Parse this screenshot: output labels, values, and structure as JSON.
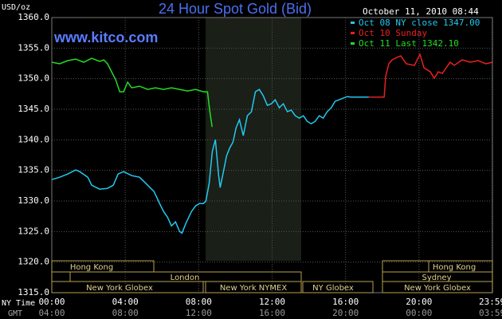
{
  "chart_data": {
    "type": "line",
    "title": "24 Hour Spot Gold (Bid)",
    "y_label": "USD/oz",
    "watermark": "www.kitco.com",
    "timestamp": "October 11, 2010 08:44",
    "x_label": "NY Time",
    "x2_label": "GMT",
    "ylim": [
      1315,
      1360
    ],
    "yticks": [
      {
        "value": 1315,
        "label": "1315.0"
      },
      {
        "value": 1320,
        "label": "1320.0"
      },
      {
        "value": 1325,
        "label": "1325.0"
      },
      {
        "value": 1330,
        "label": "1330.0"
      },
      {
        "value": 1335,
        "label": "1335.0"
      },
      {
        "value": 1340,
        "label": "1340.0"
      },
      {
        "value": 1345,
        "label": "1345.0"
      },
      {
        "value": 1350,
        "label": "1350.0"
      },
      {
        "value": 1355,
        "label": "1355.0"
      },
      {
        "value": 1360,
        "label": "1360.0"
      }
    ],
    "xlim": [
      0,
      24
    ],
    "xticks": [
      {
        "value": 0,
        "label": "00:00"
      },
      {
        "value": 4,
        "label": "04:00"
      },
      {
        "value": 8,
        "label": "08:00"
      },
      {
        "value": 12,
        "label": "12:00"
      },
      {
        "value": 16,
        "label": "16:00"
      },
      {
        "value": 20,
        "label": "20:00"
      },
      {
        "value": 23.98,
        "label": "23:59"
      }
    ],
    "x2ticks": [
      {
        "value": 0,
        "label": "04:00"
      },
      {
        "value": 4,
        "label": "08:00"
      },
      {
        "value": 8,
        "label": "12:00"
      },
      {
        "value": 12,
        "label": "16:00"
      },
      {
        "value": 16,
        "label": "20:00"
      },
      {
        "value": 20,
        "label": "00:00"
      },
      {
        "value": 23.98,
        "label": "03:59"
      }
    ],
    "grid": true,
    "sessions": [
      "Hong Kong",
      "Hong Kong",
      "London",
      "Sydney",
      "New York Globex",
      "New York NYMEX",
      "NY Globex",
      "New York Globex"
    ],
    "series": [
      {
        "name": "Oct 08 NY close 1347.00",
        "color": "#22c8f0",
        "x": [
          0,
          0.43,
          0.87,
          1.3,
          1.52,
          1.96,
          2.17,
          2.61,
          3.04,
          3.35,
          3.61,
          3.91,
          4.35,
          4.78,
          5.22,
          5.57,
          5.87,
          6.09,
          6.3,
          6.52,
          6.74,
          6.96,
          7.09,
          7.3,
          7.61,
          7.83,
          8.04,
          8.26,
          8.39,
          8.57,
          8.74,
          8.91,
          9.09,
          9.17,
          9.35,
          9.52,
          9.7,
          9.87,
          10.04,
          10.22,
          10.43,
          10.65,
          10.87,
          11.09,
          11.3,
          11.52,
          11.74,
          11.96,
          12.17,
          12.39,
          12.61,
          12.83,
          13.04,
          13.26,
          13.48,
          13.7,
          13.91,
          14.13,
          14.35,
          14.57,
          14.78,
          15.0,
          15.22,
          15.43,
          15.65,
          15.87,
          16.09,
          16.3,
          17.27
        ],
        "values": [
          1333.5,
          1333.89,
          1334.41,
          1335.07,
          1334.8,
          1333.89,
          1332.58,
          1331.93,
          1332.06,
          1332.58,
          1334.41,
          1334.8,
          1334.15,
          1333.89,
          1332.58,
          1331.54,
          1329.58,
          1328.28,
          1327.36,
          1325.93,
          1326.58,
          1325.01,
          1324.75,
          1326.32,
          1328.28,
          1329.19,
          1329.58,
          1329.58,
          1329.97,
          1332.85,
          1338.07,
          1340.03,
          1334.15,
          1332.19,
          1334.8,
          1337.41,
          1338.72,
          1339.63,
          1341.98,
          1343.29,
          1340.68,
          1343.94,
          1344.6,
          1347.86,
          1348.25,
          1347.21,
          1345.64,
          1345.9,
          1346.55,
          1345.25,
          1345.9,
          1344.6,
          1344.86,
          1343.94,
          1343.55,
          1343.94,
          1343.03,
          1342.64,
          1343.03,
          1343.94,
          1343.55,
          1344.6,
          1345.25,
          1346.29,
          1346.55,
          1346.81,
          1347.08,
          1347.0,
          1347.0
        ]
      },
      {
        "name": "Oct 10 Sunday",
        "color": "#e82020",
        "x": [
          17.27,
          18.1,
          18.19,
          18.36,
          18.53,
          18.79,
          19.01,
          19.31,
          19.75,
          20.05,
          20.27,
          20.62,
          20.83,
          21.05,
          21.27,
          21.48,
          21.7,
          21.92,
          22.35,
          22.79,
          23.22,
          23.65,
          24
        ],
        "values": [
          1347.0,
          1347.0,
          1350.47,
          1352.43,
          1353.08,
          1353.47,
          1353.73,
          1352.43,
          1352.17,
          1353.99,
          1351.78,
          1351.12,
          1350.08,
          1351.12,
          1350.86,
          1351.78,
          1352.69,
          1352.17,
          1353.08,
          1352.69,
          1352.95,
          1352.43,
          1352.69
        ]
      },
      {
        "name": "Oct 11 Last 1342.10",
        "color": "#22dd22",
        "x": [
          0,
          0.43,
          0.87,
          1.3,
          1.74,
          2.17,
          2.61,
          2.83,
          3.04,
          3.26,
          3.48,
          3.7,
          3.91,
          4.13,
          4.35,
          4.78,
          5.22,
          5.65,
          6.09,
          6.52,
          6.96,
          7.39,
          7.83,
          8.26,
          8.48,
          8.61,
          8.73
        ],
        "values": [
          1352.69,
          1352.43,
          1352.95,
          1353.21,
          1352.69,
          1353.34,
          1352.82,
          1353.08,
          1352.43,
          1351.12,
          1349.82,
          1347.86,
          1347.86,
          1349.43,
          1348.51,
          1348.77,
          1348.25,
          1348.51,
          1348.25,
          1348.51,
          1348.25,
          1347.99,
          1348.25,
          1347.86,
          1347.86,
          1344.6,
          1342.1
        ]
      }
    ]
  }
}
